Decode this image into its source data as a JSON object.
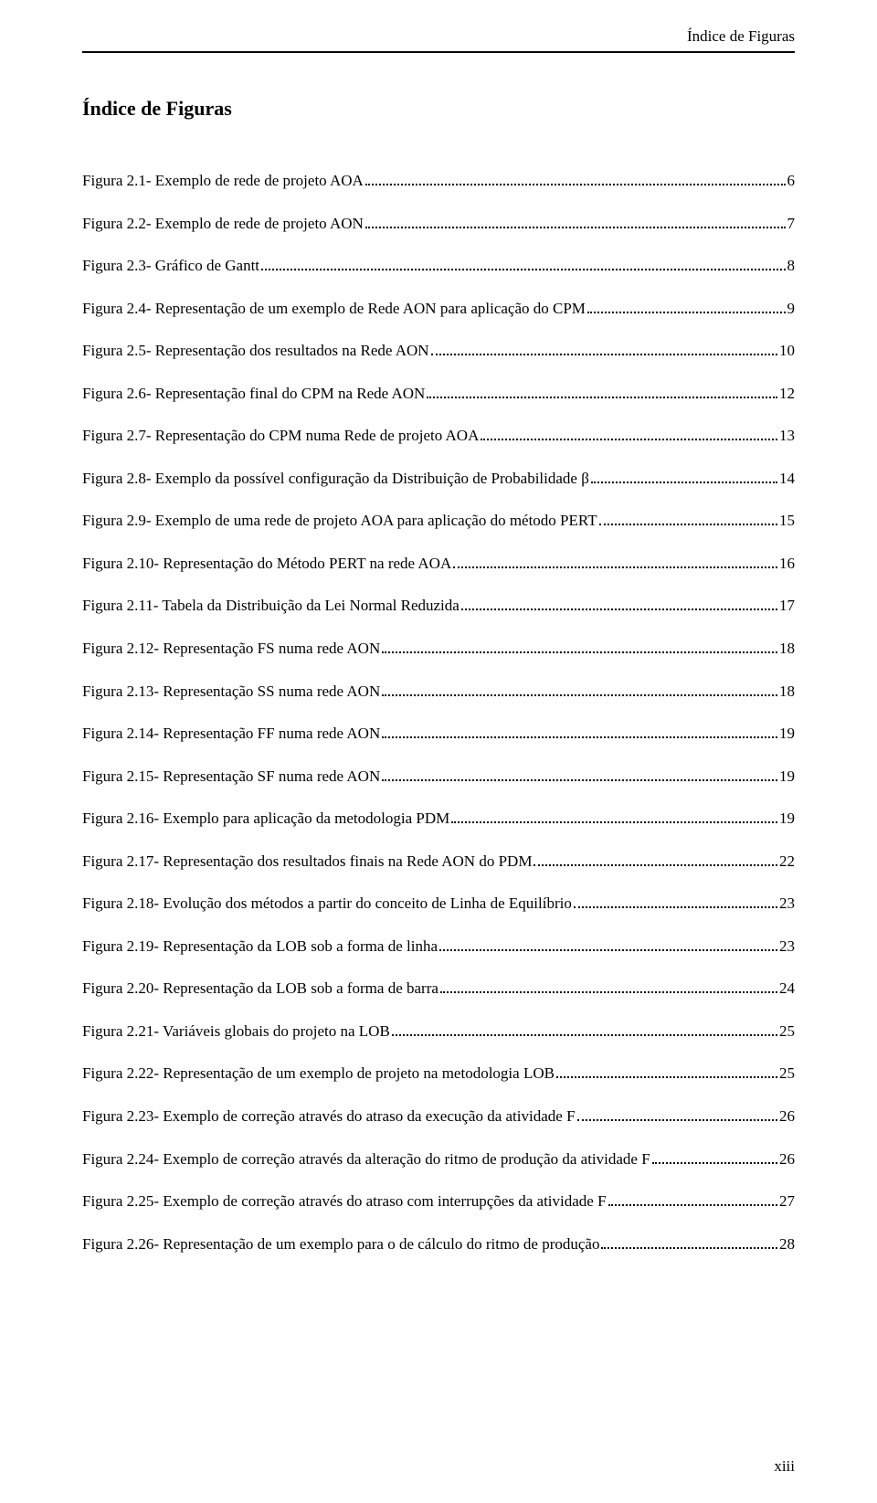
{
  "page": {
    "running_head": "Índice de Figuras",
    "section_title": "Índice de Figuras",
    "folio": "xiii",
    "text_color": "#000000",
    "background_color": "#ffffff",
    "rule_color": "#000000",
    "body_fontsize_pt": 12,
    "title_fontsize_pt": 16,
    "line_spacing_ratio": 1.8
  },
  "entries": [
    {
      "label": "Figura 2.1- Exemplo de rede de projeto AOA",
      "page": "6"
    },
    {
      "label": "Figura 2.2- Exemplo de rede de projeto AON",
      "page": "7"
    },
    {
      "label": "Figura 2.3- Gráfico de Gantt",
      "page": "8"
    },
    {
      "label": "Figura 2.4- Representação de um exemplo de Rede AON para aplicação do CPM",
      "page": "9"
    },
    {
      "label": "Figura 2.5- Representação dos resultados na Rede AON",
      "page": "10"
    },
    {
      "label": "Figura 2.6- Representação final do CPM na Rede AON",
      "page": "12"
    },
    {
      "label": "Figura 2.7- Representação do CPM numa Rede de projeto AOA",
      "page": "13"
    },
    {
      "label": "Figura 2.8- Exemplo da possível configuração da Distribuição de Probabilidade β",
      "page": "14"
    },
    {
      "label": "Figura 2.9- Exemplo de uma rede de projeto AOA para aplicação do método PERT",
      "page": "15"
    },
    {
      "label": "Figura 2.10- Representação do Método PERT na rede AOA",
      "page": "16"
    },
    {
      "label": "Figura 2.11- Tabela da Distribuição da Lei Normal Reduzida",
      "page": "17"
    },
    {
      "label": "Figura 2.12- Representação FS numa rede AON",
      "page": "18"
    },
    {
      "label": "Figura 2.13- Representação SS numa rede AON",
      "page": "18"
    },
    {
      "label": "Figura 2.14- Representação FF numa rede AON",
      "page": "19"
    },
    {
      "label": "Figura 2.15- Representação SF numa rede AON",
      "page": "19"
    },
    {
      "label": "Figura 2.16- Exemplo para aplicação da metodologia PDM",
      "page": "19"
    },
    {
      "label": "Figura 2.17- Representação dos resultados finais na Rede AON do PDM",
      "page": "22"
    },
    {
      "label": "Figura 2.18- Evolução dos métodos a partir do conceito de Linha de Equilíbrio",
      "page": "23"
    },
    {
      "label": "Figura 2.19- Representação da LOB sob a forma de linha",
      "page": "23"
    },
    {
      "label": "Figura 2.20- Representação da LOB sob a forma de barra",
      "page": "24"
    },
    {
      "label": "Figura 2.21- Variáveis globais do projeto na LOB",
      "page": "25"
    },
    {
      "label": "Figura 2.22- Representação de um exemplo de projeto na metodologia LOB",
      "page": "25"
    },
    {
      "label": "Figura 2.23- Exemplo de correção através do atraso da execução da atividade F",
      "page": "26"
    },
    {
      "label": "Figura 2.24- Exemplo de correção através da alteração do ritmo de produção da atividade F",
      "page": "26"
    },
    {
      "label": "Figura 2.25- Exemplo de correção através do atraso com interrupções da atividade F",
      "page": "27"
    },
    {
      "label": "Figura 2.26- Representação de um exemplo para o de cálculo do ritmo de produção",
      "page": "28"
    }
  ]
}
